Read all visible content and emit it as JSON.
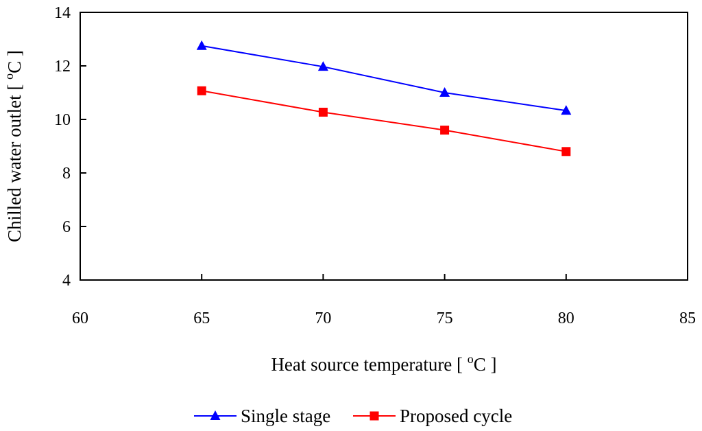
{
  "chart_data": {
    "type": "line",
    "xlabel_main": "Heat source temperature [ ",
    "xlabel_sup": "o",
    "xlabel_end": "C ]",
    "ylabel_main": "Chilled water outlet [ ",
    "ylabel_sup": "o",
    "ylabel_end": "C ]",
    "xlim": [
      60,
      85
    ],
    "ylim": [
      4,
      14
    ],
    "x_ticks": [
      60,
      65,
      70,
      75,
      80,
      85
    ],
    "y_ticks": [
      4,
      6,
      8,
      10,
      12,
      14
    ],
    "grid": false,
    "legend_position": "bottom",
    "series": [
      {
        "name": "Single stage",
        "color": "#0000ff",
        "marker": "triangle",
        "x": [
          65,
          70,
          75,
          80
        ],
        "y": [
          12.75,
          11.97,
          11.0,
          10.33
        ]
      },
      {
        "name": "Proposed cycle",
        "color": "#ff0000",
        "marker": "square",
        "x": [
          65,
          70,
          75,
          80
        ],
        "y": [
          11.07,
          10.27,
          9.6,
          8.8
        ]
      }
    ]
  }
}
